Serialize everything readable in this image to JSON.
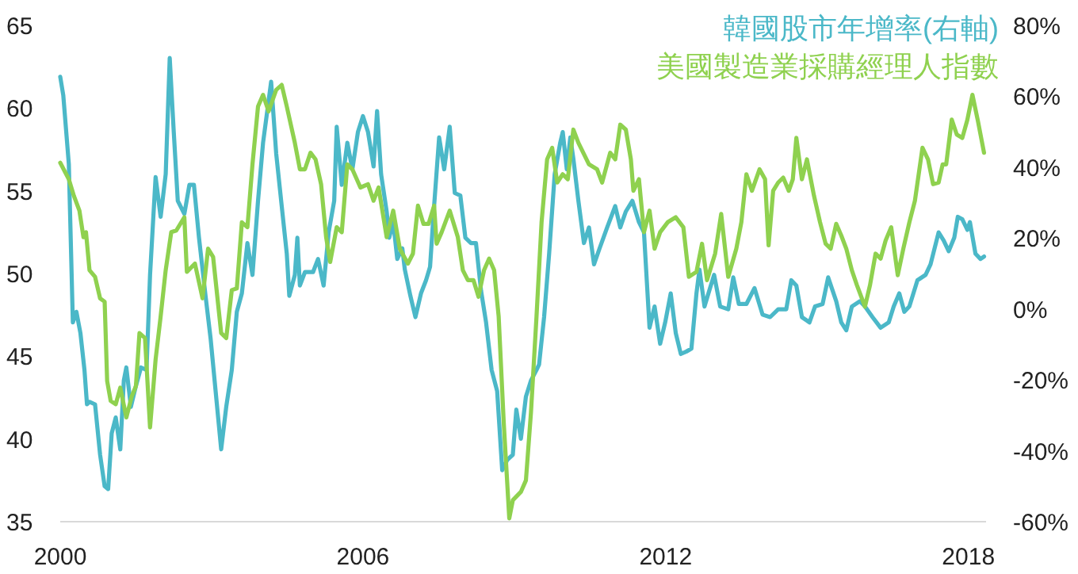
{
  "chart_data": {
    "type": "line",
    "xlim": [
      2000,
      2018.35
    ],
    "xticks": [
      2000,
      2006,
      2012,
      2018
    ],
    "ylim": [
      35,
      65
    ],
    "yticks": [
      35,
      40,
      45,
      50,
      55,
      60,
      65
    ],
    "y2lim": [
      -60,
      80
    ],
    "y2ticks": [
      {
        "value": -60,
        "label": "-60%"
      },
      {
        "value": -40,
        "label": "-40%"
      },
      {
        "value": -20,
        "label": "-20%"
      },
      {
        "value": 0,
        "label": "0%"
      },
      {
        "value": 20,
        "label": "20%"
      },
      {
        "value": 40,
        "label": "40%"
      },
      {
        "value": 60,
        "label": "60%"
      },
      {
        "value": 80,
        "label": "80%"
      }
    ],
    "grid": false,
    "legend": "top right",
    "series": [
      {
        "name": "韓國股市年增率(右軸)",
        "color": "#4bb8c8",
        "axis": "y2",
        "x": [
          2000.0,
          2000.06,
          2000.17,
          2000.25,
          2000.32,
          2000.4,
          2000.48,
          2000.53,
          2000.58,
          2000.69,
          2000.79,
          2000.88,
          2000.95,
          2001.02,
          2001.1,
          2001.19,
          2001.26,
          2001.31,
          2001.4,
          2001.5,
          2001.6,
          2001.71,
          2001.78,
          2001.89,
          2001.99,
          2002.09,
          2002.17,
          2002.25,
          2002.33,
          2002.46,
          2002.56,
          2002.65,
          2002.75,
          2002.88,
          2002.98,
          2003.08,
          2003.19,
          2003.29,
          2003.4,
          2003.5,
          2003.6,
          2003.71,
          2003.81,
          2003.92,
          2004.02,
          2004.18,
          2004.28,
          2004.39,
          2004.49,
          2004.54,
          2004.65,
          2004.7,
          2004.75,
          2004.85,
          2005.01,
          2005.11,
          2005.22,
          2005.32,
          2005.43,
          2005.48,
          2005.58,
          2005.69,
          2005.79,
          2005.9,
          2006.0,
          2006.1,
          2006.21,
          2006.28,
          2006.36,
          2006.47,
          2006.52,
          2006.6,
          2006.68,
          2006.78,
          2006.83,
          2006.94,
          2007.04,
          2007.15,
          2007.25,
          2007.33,
          2007.41,
          2007.51,
          2007.61,
          2007.72,
          2007.82,
          2007.93,
          2008.03,
          2008.14,
          2008.24,
          2008.34,
          2008.44,
          2008.55,
          2008.66,
          2008.76,
          2008.86,
          2008.97,
          2009.04,
          2009.13,
          2009.23,
          2009.33,
          2009.44,
          2009.49,
          2009.59,
          2009.69,
          2009.8,
          2009.91,
          2009.96,
          2010.04,
          2010.11,
          2010.17,
          2010.27,
          2010.38,
          2010.48,
          2010.58,
          2010.69,
          2010.84,
          2011.0,
          2011.1,
          2011.21,
          2011.34,
          2011.47,
          2011.57,
          2011.68,
          2011.78,
          2011.89,
          2011.99,
          2012.1,
          2012.2,
          2012.3,
          2012.41,
          2012.51,
          2012.61,
          2012.67,
          2012.77,
          2012.88,
          2012.96,
          2013.08,
          2013.24,
          2013.34,
          2013.45,
          2013.6,
          2013.76,
          2013.92,
          2014.07,
          2014.23,
          2014.39,
          2014.49,
          2014.59,
          2014.7,
          2014.85,
          2014.96,
          2015.11,
          2015.22,
          2015.38,
          2015.48,
          2015.58,
          2015.69,
          2015.85,
          2015.95,
          2016.1,
          2016.26,
          2016.42,
          2016.52,
          2016.63,
          2016.73,
          2016.83,
          2016.99,
          2017.15,
          2017.25,
          2017.41,
          2017.51,
          2017.61,
          2017.72,
          2017.79,
          2017.88,
          2017.98,
          2018.03,
          2018.14,
          2018.24,
          2018.31
        ],
        "values": [
          65.5,
          60.3,
          40.9,
          -3.8,
          -0.8,
          -6.8,
          -17.2,
          -26.9,
          -26.2,
          -26.9,
          -41.1,
          -50.0,
          -50.8,
          -35.1,
          -30.6,
          -39.6,
          -20.2,
          -16.5,
          -27.6,
          -21.7,
          -16.5,
          -17.2,
          9.6,
          37.2,
          26.0,
          38.0,
          70.8,
          49.9,
          30.5,
          26.8,
          35.0,
          35.0,
          20.1,
          3.7,
          -8.3,
          -23.2,
          -39.6,
          -27.6,
          -17.2,
          -0.8,
          4.4,
          18.6,
          9.6,
          30.5,
          46.9,
          64.1,
          43.9,
          29.0,
          15.6,
          3.7,
          9.6,
          20.1,
          6.6,
          10.4,
          10.4,
          14.1,
          6.6,
          21.6,
          30.5,
          51.4,
          35.0,
          46.9,
          39.4,
          49.9,
          54.4,
          49.9,
          40.2,
          55.8,
          38.0,
          27.5,
          20.1,
          24.5,
          14.1,
          17.1,
          11.1,
          3.7,
          -2.3,
          4.4,
          8.1,
          11.9,
          29.0,
          48.4,
          39.4,
          51.4,
          32.7,
          32.0,
          20.1,
          18.6,
          18.6,
          5.2,
          -3.8,
          -17.2,
          -23.2,
          -45.5,
          -42.6,
          -41.1,
          -28.4,
          -36.6,
          -24.7,
          -20.2,
          -17.2,
          -15.7,
          -2.3,
          15.6,
          38.0,
          46.9,
          49.9,
          39.4,
          48.4,
          42.4,
          30.5,
          18.6,
          23.0,
          12.6,
          17.1,
          23.0,
          29.0,
          23.0,
          27.5,
          30.5,
          24.5,
          21.6,
          -5.3,
          0.7,
          -9.8,
          -3.8,
          4.4,
          -6.8,
          -12.7,
          -12.0,
          -11.2,
          4.4,
          11.1,
          0.7,
          5.9,
          9.6,
          0.7,
          -0.1,
          8.9,
          1.4,
          1.4,
          5.9,
          -1.6,
          -2.3,
          -0.1,
          -0.1,
          8.1,
          6.6,
          -2.3,
          -3.8,
          0.7,
          1.4,
          8.9,
          2.2,
          -3.8,
          -6.0,
          0.7,
          2.2,
          0.7,
          -2.3,
          -5.3,
          -3.8,
          0.7,
          4.4,
          -0.8,
          0.7,
          8.1,
          9.6,
          12.6,
          21.6,
          19.3,
          16.3,
          20.1,
          26.0,
          25.3,
          22.3,
          24.5,
          15.6,
          14.1,
          14.8
        ]
      },
      {
        "name": "美國製造業採購經理人指數",
        "color": "#8fd14f",
        "x": [
          2000.0,
          2000.17,
          2000.27,
          2000.38,
          2000.46,
          2000.51,
          2000.58,
          2000.69,
          2000.79,
          2000.88,
          2000.93,
          2001.0,
          2001.1,
          2001.19,
          2001.31,
          2001.42,
          2001.5,
          2001.57,
          2001.68,
          2001.78,
          2001.89,
          2001.99,
          2002.09,
          2002.2,
          2002.3,
          2002.46,
          2002.51,
          2002.67,
          2002.82,
          2002.93,
          2003.03,
          2003.19,
          2003.29,
          2003.4,
          2003.5,
          2003.6,
          2003.71,
          2003.81,
          2003.92,
          2004.02,
          2004.13,
          2004.28,
          2004.39,
          2004.49,
          2004.65,
          2004.75,
          2004.85,
          2004.96,
          2005.06,
          2005.17,
          2005.27,
          2005.35,
          2005.48,
          2005.58,
          2005.69,
          2005.79,
          2005.95,
          2006.1,
          2006.21,
          2006.31,
          2006.47,
          2006.6,
          2006.73,
          2006.89,
          2006.99,
          2007.09,
          2007.2,
          2007.3,
          2007.41,
          2007.46,
          2007.56,
          2007.72,
          2007.88,
          2007.98,
          2008.08,
          2008.19,
          2008.29,
          2008.4,
          2008.5,
          2008.6,
          2008.69,
          2008.79,
          2008.9,
          2008.97,
          2009.13,
          2009.23,
          2009.33,
          2009.44,
          2009.54,
          2009.65,
          2009.75,
          2009.85,
          2009.96,
          2010.06,
          2010.17,
          2010.27,
          2010.48,
          2010.64,
          2010.74,
          2010.9,
          2011.0,
          2011.1,
          2011.21,
          2011.31,
          2011.36,
          2011.47,
          2011.57,
          2011.68,
          2011.78,
          2011.89,
          2012.04,
          2012.2,
          2012.35,
          2012.46,
          2012.61,
          2012.72,
          2012.82,
          2012.98,
          2013.1,
          2013.24,
          2013.4,
          2013.5,
          2013.6,
          2013.71,
          2013.86,
          2013.97,
          2014.04,
          2014.13,
          2014.23,
          2014.33,
          2014.44,
          2014.52,
          2014.59,
          2014.7,
          2014.8,
          2014.94,
          2015.06,
          2015.17,
          2015.27,
          2015.38,
          2015.48,
          2015.58,
          2015.69,
          2015.79,
          2015.95,
          2016.05,
          2016.16,
          2016.26,
          2016.36,
          2016.47,
          2016.6,
          2016.71,
          2016.83,
          2016.94,
          2017.09,
          2017.2,
          2017.3,
          2017.41,
          2017.49,
          2017.56,
          2017.67,
          2017.77,
          2017.88,
          2017.98,
          2018.08,
          2018.19,
          2018.31
        ],
        "values": [
          56.7,
          55.7,
          54.7,
          53.8,
          52.2,
          52.5,
          50.2,
          49.8,
          48.5,
          48.3,
          43.5,
          42.3,
          42.1,
          43.1,
          41.3,
          42.6,
          43.2,
          46.4,
          46.1,
          40.7,
          44.8,
          47.4,
          50.2,
          52.5,
          52.6,
          53.4,
          50.1,
          50.6,
          48.5,
          51.5,
          51.0,
          46.4,
          46.1,
          49.0,
          49.1,
          53.1,
          52.8,
          56.6,
          60.1,
          60.8,
          59.8,
          61.1,
          61.4,
          60.1,
          57.9,
          56.3,
          56.3,
          57.3,
          56.9,
          55.4,
          52.2,
          50.7,
          52.8,
          52.5,
          56.6,
          56.3,
          55.2,
          55.4,
          54.4,
          55.2,
          52.2,
          53.8,
          51.5,
          50.6,
          51.2,
          54.1,
          53.0,
          53.0,
          54.1,
          51.8,
          52.5,
          53.8,
          52.2,
          50.2,
          49.6,
          49.6,
          48.6,
          50.2,
          50.9,
          50.2,
          47.4,
          41.0,
          35.2,
          36.3,
          36.8,
          37.5,
          41.6,
          47.4,
          53.1,
          56.9,
          57.6,
          55.5,
          56.0,
          55.7,
          58.7,
          57.9,
          56.6,
          56.3,
          55.5,
          57.3,
          56.9,
          59.0,
          58.7,
          56.9,
          55.0,
          55.7,
          52.5,
          53.8,
          51.5,
          52.5,
          53.1,
          53.4,
          52.8,
          49.8,
          50.1,
          51.8,
          49.6,
          51.2,
          53.6,
          49.8,
          51.5,
          53.1,
          56.0,
          55.0,
          56.3,
          55.7,
          51.7,
          55.0,
          55.5,
          55.8,
          55.0,
          55.7,
          58.2,
          55.7,
          56.9,
          54.7,
          53.1,
          51.8,
          51.5,
          53.0,
          52.3,
          51.5,
          50.2,
          49.3,
          48.0,
          49.3,
          51.2,
          50.9,
          52.0,
          52.8,
          49.9,
          51.5,
          53.1,
          54.4,
          57.6,
          56.9,
          55.4,
          55.5,
          56.6,
          56.6,
          59.3,
          58.4,
          58.2,
          59.3,
          60.8,
          59.2,
          57.3
        ]
      }
    ]
  }
}
